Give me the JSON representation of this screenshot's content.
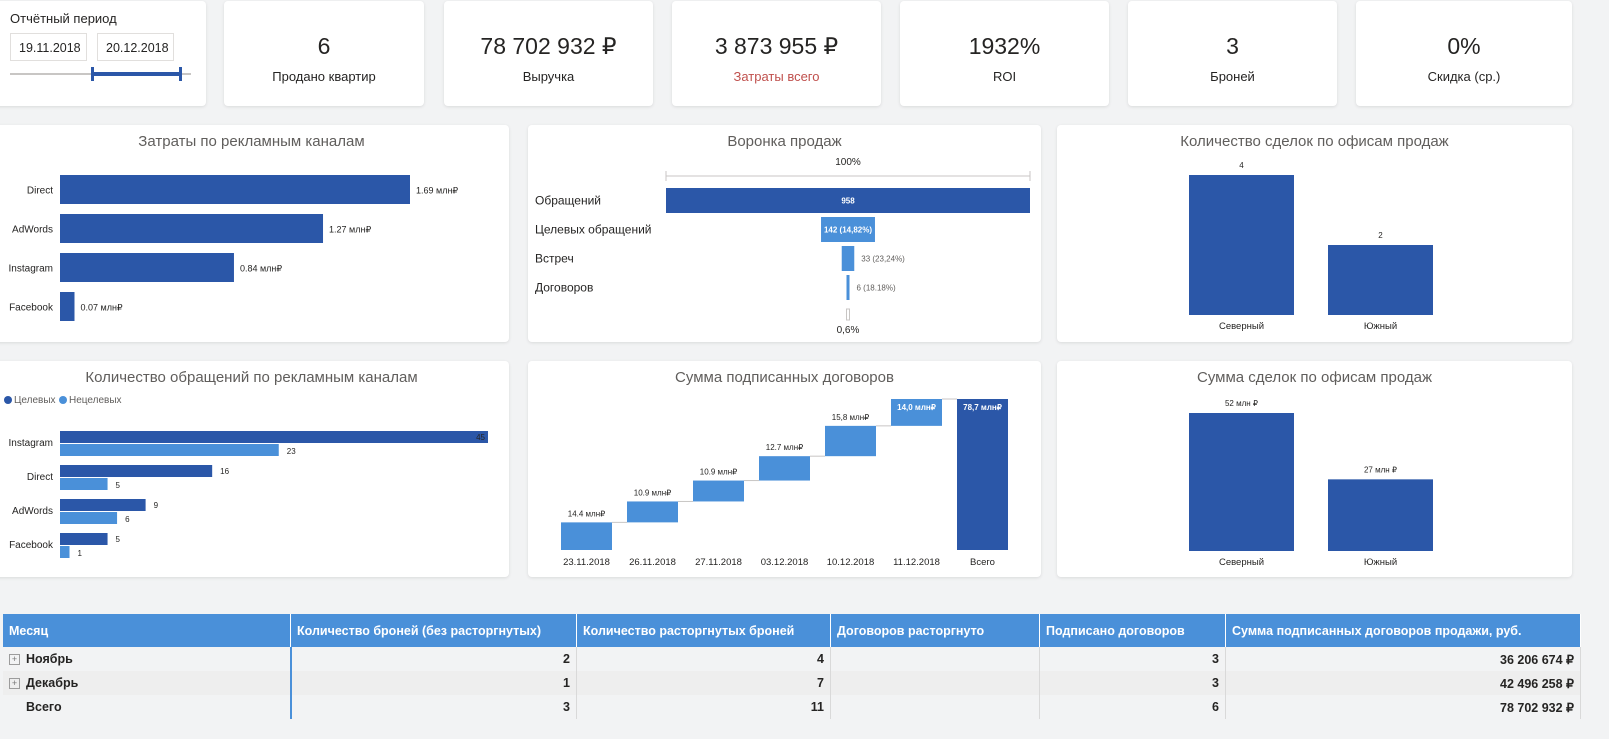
{
  "period": {
    "label": "Отчётный период",
    "date_from": "19.11.2018",
    "date_to": "20.12.2018"
  },
  "kpis": [
    {
      "value": "6",
      "label": "Продано квартир"
    },
    {
      "value": "78 702 932 ₽",
      "label": "Выручка"
    },
    {
      "value": "3 873 955 ₽",
      "label": "Затраты всего"
    },
    {
      "value": "1932%",
      "label": "ROI"
    },
    {
      "value": "3",
      "label": "Броней"
    },
    {
      "value": "0%",
      "label": "Скидка (ср.)"
    }
  ],
  "colors": {
    "dark": "#2b57a8",
    "light": "#4a90d9",
    "red": "#c0504d"
  },
  "chart_data": [
    {
      "id": "ad_costs",
      "type": "bar",
      "orientation": "horizontal",
      "title": "Затраты по рекламным каналам",
      "categories": [
        "Direct",
        "AdWords",
        "Instagram",
        "Facebook"
      ],
      "values": [
        1.69,
        1.27,
        0.84,
        0.07
      ],
      "labels": [
        "1.69 млн₽",
        "1.27 млн₽",
        "0.84 млн₽",
        "0.07 млн₽"
      ],
      "unit": "млн₽"
    },
    {
      "id": "funnel",
      "type": "bar",
      "subtype": "funnel",
      "title": "Воронка продаж",
      "top_label": "100%",
      "bottom_label": "0,6%",
      "categories": [
        "Обращений",
        "Целевых обращений",
        "Встреч",
        "Договоров"
      ],
      "values": [
        958,
        142,
        33,
        6
      ],
      "labels": [
        "958",
        "142 (14,82%)",
        "33 (23,24%)",
        "6 (18.18%)"
      ]
    },
    {
      "id": "deals_by_office",
      "type": "bar",
      "title": "Количество  сделок по офисам продаж",
      "categories": [
        "Северный",
        "Южный"
      ],
      "values": [
        4,
        2
      ],
      "labels": [
        "4",
        "2"
      ]
    },
    {
      "id": "inquiries_by_channel",
      "type": "bar",
      "orientation": "horizontal",
      "title": "Количество обращений по рекламным каналам",
      "categories": [
        "Instagram",
        "Direct",
        "AdWords",
        "Facebook"
      ],
      "series": [
        {
          "name": "Целевых",
          "values": [
            45,
            16,
            9,
            5
          ]
        },
        {
          "name": "Нецелевых",
          "values": [
            23,
            5,
            6,
            1
          ]
        }
      ],
      "legend": "top-left"
    },
    {
      "id": "contracts_waterfall",
      "type": "bar",
      "subtype": "waterfall",
      "title": "Сумма подписанных договоров",
      "categories": [
        "23.11.2018",
        "26.11.2018",
        "27.11.2018",
        "03.12.2018",
        "10.12.2018",
        "11.12.2018",
        "Всего"
      ],
      "values": [
        14.4,
        10.9,
        10.9,
        12.7,
        15.8,
        14.0,
        78.7
      ],
      "labels": [
        "14.4 млн₽",
        "10.9 млн₽",
        "10.9 млн₽",
        "12.7 млн₽",
        "15,8 млн₽",
        "14,0 млн₽",
        "78,7 млн₽"
      ],
      "unit": "млн₽"
    },
    {
      "id": "sum_by_office",
      "type": "bar",
      "title": "Сумма  сделок по офисам продаж",
      "categories": [
        "Северный",
        "Южный"
      ],
      "values": [
        52,
        27
      ],
      "labels": [
        "52 млн ₽",
        "27 млн ₽"
      ],
      "unit": "млн ₽"
    }
  ],
  "table": {
    "headers": [
      "Месяц",
      "Количество броней (без расторгнутых)",
      "Количество расторгнутых броней",
      "Договоров расторгнуто",
      "Подписано договоров",
      "Сумма подписанных договоров продажи, руб."
    ],
    "rows": [
      {
        "month": "Ноябрь",
        "cells": [
          "2",
          "4",
          "",
          "3",
          "36 206 674 ₽"
        ],
        "expandable": true
      },
      {
        "month": "Декабрь",
        "cells": [
          "1",
          "7",
          "",
          "3",
          "42 496 258 ₽"
        ],
        "expandable": true
      },
      {
        "month": "Всего",
        "cells": [
          "3",
          "11",
          "",
          "6",
          "78 702 932 ₽"
        ],
        "expandable": false
      }
    ]
  }
}
